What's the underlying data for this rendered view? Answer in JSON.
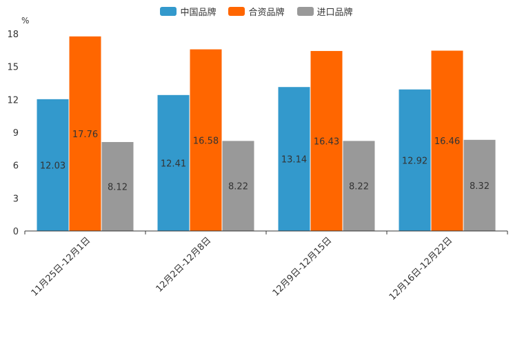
{
  "chart_data": {
    "type": "bar",
    "unit_label": "%",
    "categories": [
      "11月25日-12月1日",
      "12月2日-12月8日",
      "12月9日-12月15日",
      "12月16日-12月22日"
    ],
    "series": [
      {
        "name": "中国品牌",
        "color": "#3399cc",
        "values": [
          12.03,
          12.41,
          13.14,
          12.92
        ],
        "labels": [
          "12.03",
          "12.41",
          "13.14",
          "12.92"
        ]
      },
      {
        "name": "合资品牌",
        "color": "#ff6600",
        "values": [
          17.76,
          16.58,
          16.43,
          16.46
        ],
        "labels": [
          "17.76",
          "16.58",
          "16.43",
          "16.46"
        ]
      },
      {
        "name": "进口品牌",
        "color": "#999999",
        "values": [
          8.12,
          8.22,
          8.22,
          8.32
        ],
        "labels": [
          "8.12",
          "8.22",
          "8.22",
          "8.32"
        ]
      }
    ],
    "y_ticks": [
      "0",
      "3",
      "6",
      "9",
      "12",
      "15",
      "18"
    ],
    "ylim": [
      0,
      18
    ],
    "legend_position": "top-center"
  }
}
